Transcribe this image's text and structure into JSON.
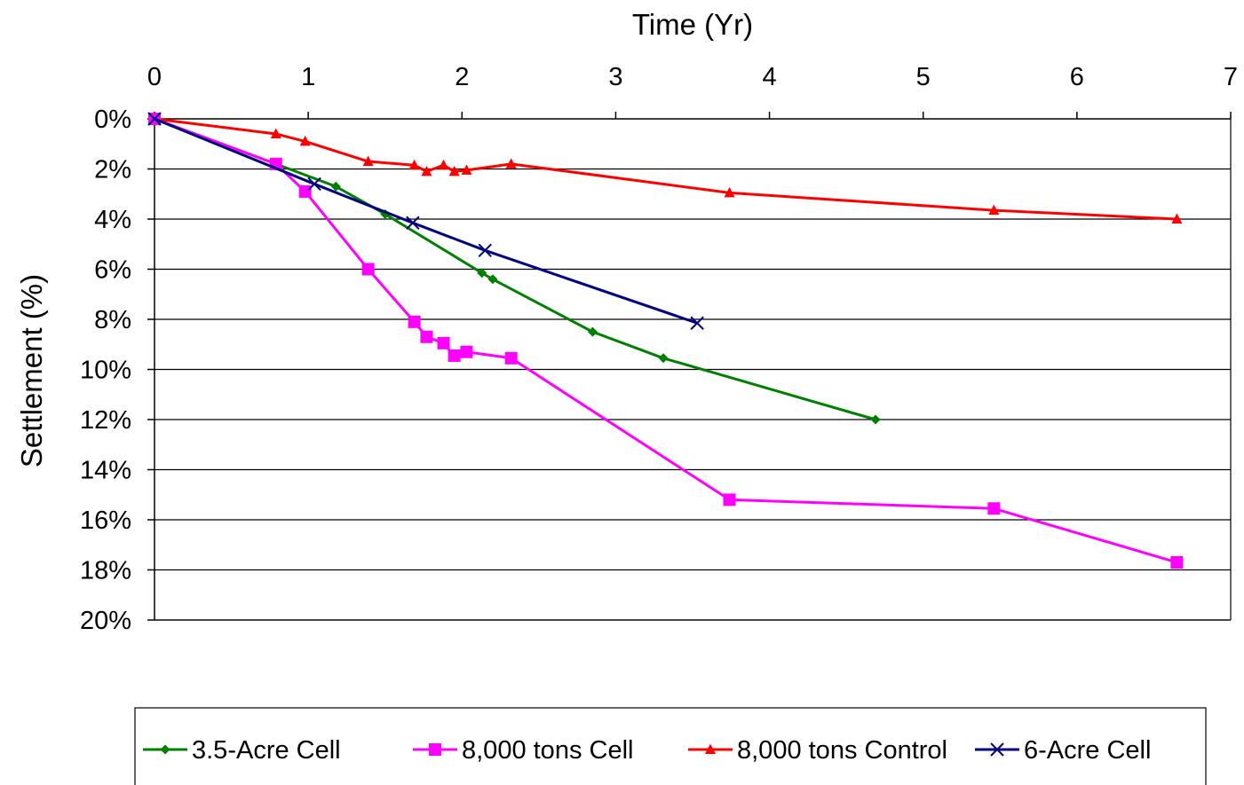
{
  "chart_data": {
    "type": "line",
    "title": "",
    "xlabel": "Time (Yr)",
    "ylabel": "Settlement (%)",
    "xlim": [
      0,
      7
    ],
    "ylim": [
      0,
      20
    ],
    "y_inverted": true,
    "x_axis_position": "top",
    "x_ticks": [
      0,
      1,
      2,
      3,
      4,
      5,
      6,
      7
    ],
    "x_tick_labels": [
      "0",
      "1",
      "2",
      "3",
      "4",
      "5",
      "6",
      "7"
    ],
    "y_ticks": [
      0,
      2,
      4,
      6,
      8,
      10,
      12,
      14,
      16,
      18,
      20
    ],
    "y_tick_labels": [
      "0%",
      "2%",
      "4%",
      "6%",
      "8%",
      "10%",
      "12%",
      "14%",
      "16%",
      "18%",
      "20%"
    ],
    "grid": "horizontal",
    "legend_position": "bottom",
    "series": [
      {
        "name": "3.5-Acre Cell",
        "color": "#008000",
        "marker": "diamond",
        "x": [
          0,
          0.79,
          1.18,
          1.5,
          2.13,
          2.2,
          2.85,
          3.31,
          4.69
        ],
        "y": [
          0,
          1.8,
          2.7,
          3.8,
          6.15,
          6.4,
          8.5,
          9.55,
          12.0
        ]
      },
      {
        "name": "8,000 tons Cell",
        "color": "#ff00ff",
        "marker": "square",
        "x": [
          0,
          0.79,
          0.98,
          1.39,
          1.69,
          1.77,
          1.88,
          1.95,
          2.03,
          2.32,
          3.74,
          5.46,
          6.65
        ],
        "y": [
          0,
          1.8,
          2.9,
          6.0,
          8.1,
          8.7,
          8.95,
          9.45,
          9.3,
          9.55,
          15.2,
          15.55,
          17.7
        ]
      },
      {
        "name": "8,000 tons Control",
        "color": "#ff0000",
        "marker": "triangle",
        "x": [
          0,
          0.79,
          0.98,
          1.39,
          1.69,
          1.77,
          1.88,
          1.95,
          2.03,
          2.32,
          3.74,
          5.46,
          6.65
        ],
        "y": [
          0,
          0.6,
          0.9,
          1.7,
          1.85,
          2.1,
          1.85,
          2.1,
          2.05,
          1.8,
          2.95,
          3.65,
          4.0
        ]
      },
      {
        "name": "6-Acre Cell",
        "color": "#000080",
        "marker": "x",
        "x": [
          0,
          1.04,
          1.68,
          2.15,
          3.53
        ],
        "y": [
          0,
          2.6,
          4.15,
          5.25,
          8.15
        ]
      }
    ]
  }
}
